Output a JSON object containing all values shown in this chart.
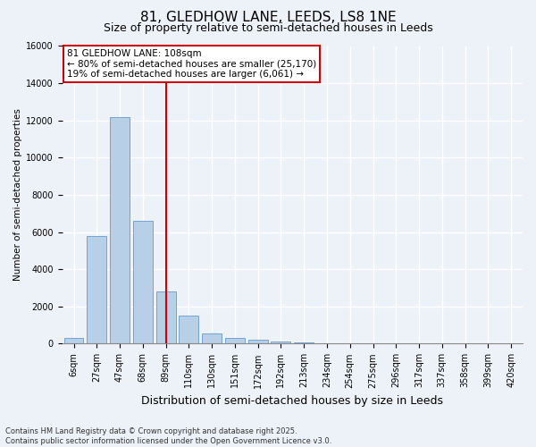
{
  "title_line1": "81, GLEDHOW LANE, LEEDS, LS8 1NE",
  "title_line2": "Size of property relative to semi-detached houses in Leeds",
  "xlabel": "Distribution of semi-detached houses by size in Leeds",
  "ylabel": "Number of semi-detached properties",
  "categories": [
    "6sqm",
    "27sqm",
    "47sqm",
    "68sqm",
    "89sqm",
    "110sqm",
    "130sqm",
    "151sqm",
    "172sqm",
    "192sqm",
    "213sqm",
    "234sqm",
    "254sqm",
    "275sqm",
    "296sqm",
    "317sqm",
    "337sqm",
    "358sqm",
    "399sqm",
    "420sqm"
  ],
  "values": [
    300,
    5800,
    12200,
    6600,
    2800,
    1500,
    550,
    300,
    200,
    130,
    80,
    30,
    15,
    10,
    5,
    3,
    2,
    1,
    1,
    0
  ],
  "bar_color": "#b8cfe8",
  "bar_edge_color": "#6699cc",
  "vline_x": 4,
  "vline_color": "#cc0000",
  "annotation_text": "81 GLEDHOW LANE: 108sqm\n← 80% of semi-detached houses are smaller (25,170)\n19% of semi-detached houses are larger (6,061) →",
  "annotation_box_color": "#ffffff",
  "annotation_box_edge_color": "#cc0000",
  "ylim": [
    0,
    16000
  ],
  "yticks": [
    0,
    2000,
    4000,
    6000,
    8000,
    10000,
    12000,
    14000,
    16000
  ],
  "footer_line1": "Contains HM Land Registry data © Crown copyright and database right 2025.",
  "footer_line2": "Contains public sector information licensed under the Open Government Licence v3.0.",
  "bg_color": "#edf2f9",
  "plot_bg_color": "#edf2f9",
  "grid_color": "#ffffff",
  "title1_fontsize": 11,
  "title2_fontsize": 9,
  "xlabel_fontsize": 9,
  "ylabel_fontsize": 7.5,
  "tick_fontsize": 7,
  "footer_fontsize": 6,
  "annot_fontsize": 7.5
}
